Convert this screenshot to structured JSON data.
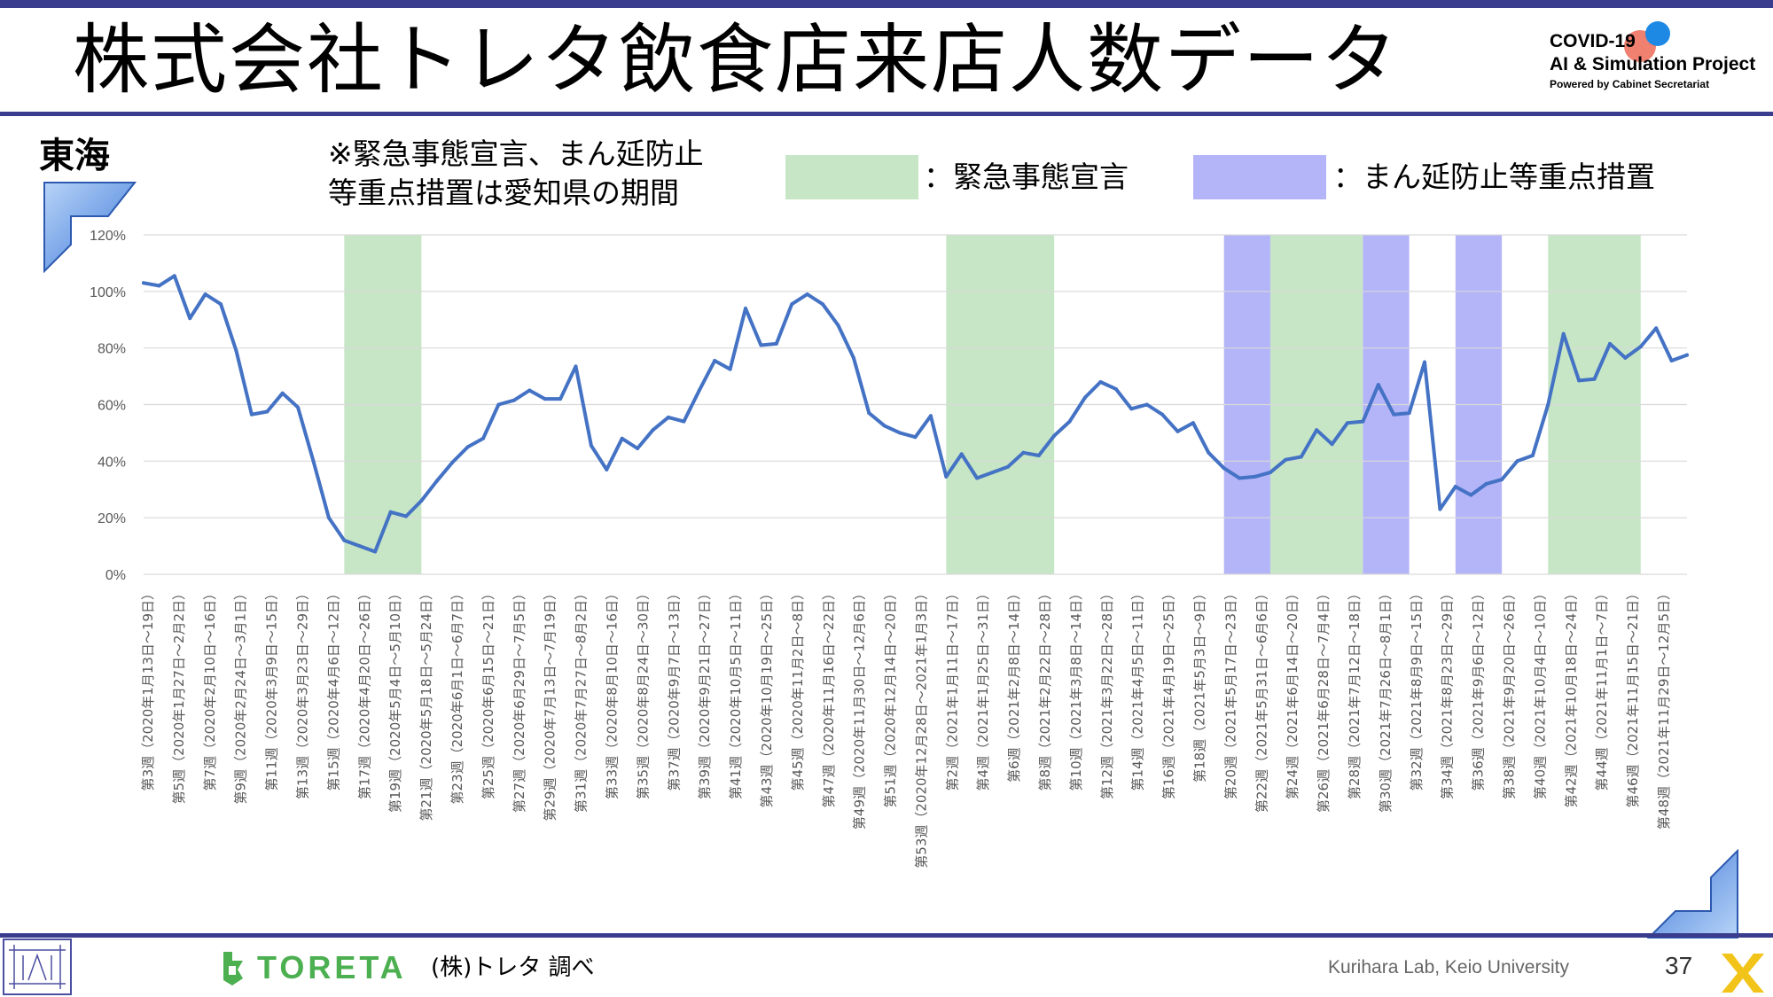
{
  "header": {
    "title": "株式会社トレタ飲食店来店人数データ",
    "project_line1": "COVID-19",
    "project_line2": "AI & Simulation Project",
    "project_line3": "Powered by Cabinet Secretariat"
  },
  "region": "東海",
  "note_line1": "※緊急事態宣言、まん延防止",
  "note_line2": "等重点措置は愛知県の期間",
  "legend": {
    "emergency_label": "：緊急事態宣言",
    "emergency_color": "#c6e6c6",
    "manen_label": "：まん延防止等重点措置",
    "manen_color": "#b4b4f8"
  },
  "chart_data": {
    "type": "line",
    "line_color": "#4472c4",
    "ylim": [
      0,
      1.2
    ],
    "y_ticks": [
      "0%",
      "20%",
      "40%",
      "60%",
      "80%",
      "100%",
      "120%"
    ],
    "x_labels": [
      "第3週（2020年1月13日～19日）",
      "第5週（2020年1月27日～2月2日）",
      "第7週（2020年2月10日～16日）",
      "第9週（2020年2月24日～3月1日）",
      "第11週（2020年3月9日～15日）",
      "第13週（2020年3月23日～29日）",
      "第15週（2020年4月6日～12日）",
      "第17週（2020年4月20日～26日）",
      "第19週（2020年5月4日～5月10日）",
      "第21週（2020年5月18日～5月24日）",
      "第23週（2020年6月1日～6月7日）",
      "第25週（2020年6月15日～21日）",
      "第27週（2020年6月29日～7月5日）",
      "第29週（2020年7月13日～7月19日）",
      "第31週（2020年7月27日～8月2日）",
      "第33週（2020年8月10日～16日）",
      "第35週（2020年8月24日～30日）",
      "第37週（2020年9月7日～13日）",
      "第39週（2020年9月21日～27日）",
      "第41週（2020年10月5日～11日）",
      "第43週（2020年10月19日～25日）",
      "第45週（2020年11月2日～8日）",
      "第47週（2020年11月16日～22日）",
      "第49週（2020年11月30日～12月6日）",
      "第51週（2020年12月14日～20日）",
      "第53週（2020年12月28日～2021年1月3日）",
      "第2週（2021年1月11日～17日）",
      "第4週（2021年1月25日～31日）",
      "第6週（2021年2月8日～14日）",
      "第8週（2021年2月22日～28日）",
      "第10週（2021年3月8日～14日）",
      "第12週（2021年3月22日～28日）",
      "第14週（2021年4月5日～11日）",
      "第16週（2021年4月19日～25日）",
      "第18週（2021年5月3日～9日）",
      "第20週（2021年5月17日～23日）",
      "第22週（2021年5月31日～6月6日）",
      "第24週（2021年6月14日～20日）",
      "第26週（2021年6月28日～7月4日）",
      "第28週（2021年7月12日～18日）",
      "第30週（2021年7月26日～8月1日）",
      "第32週（2021年8月9日～15日）",
      "第34週（2021年8月23日～29日）",
      "第36週（2021年9月6日～12日）",
      "第38週（2021年9月20日～26日）",
      "第40週（2021年10月4日～10日）",
      "第42週（2021年10月18日～24日）",
      "第44週（2021年11月1日～7日）",
      "第46週（2021年11月15日～21日）",
      "第48週（2021年11月29日～12月5日）"
    ],
    "values": [
      1.03,
      1.02,
      1.055,
      0.905,
      0.99,
      0.955,
      0.79,
      0.565,
      0.575,
      0.64,
      0.59,
      0.4,
      0.2,
      0.12,
      0.1,
      0.08,
      0.22,
      0.205,
      0.26,
      0.33,
      0.395,
      0.45,
      0.48,
      0.6,
      0.615,
      0.65,
      0.62,
      0.62,
      0.735,
      0.455,
      0.37,
      0.48,
      0.445,
      0.51,
      0.555,
      0.54,
      0.65,
      0.755,
      0.725,
      0.94,
      0.81,
      0.815,
      0.955,
      0.99,
      0.955,
      0.88,
      0.765,
      0.57,
      0.525,
      0.5,
      0.485,
      0.56,
      0.345,
      0.425,
      0.34,
      0.36,
      0.38,
      0.43,
      0.42,
      0.49,
      0.54,
      0.625,
      0.68,
      0.655,
      0.585,
      0.6,
      0.565,
      0.505,
      0.535,
      0.43,
      0.375,
      0.34,
      0.345,
      0.36,
      0.405,
      0.415,
      0.51,
      0.46,
      0.535,
      0.54,
      0.67,
      0.565,
      0.57,
      0.75,
      0.23,
      0.31,
      0.28,
      0.32,
      0.335,
      0.4,
      0.42,
      0.6,
      0.85,
      0.685,
      0.69,
      0.815,
      0.765,
      0.805,
      0.87,
      0.755,
      0.775
    ],
    "emergency_ranges": [
      [
        13,
        18
      ],
      [
        52,
        59
      ],
      [
        73,
        79
      ],
      [
        91,
        97
      ]
    ],
    "manen_ranges": [
      [
        70,
        73
      ],
      [
        79,
        82
      ],
      [
        85,
        88
      ]
    ]
  },
  "footer": {
    "brand": "TORETA",
    "source": "(株)トレタ 調べ",
    "lab": "Kurihara Lab, Keio University",
    "page_number": "37"
  }
}
